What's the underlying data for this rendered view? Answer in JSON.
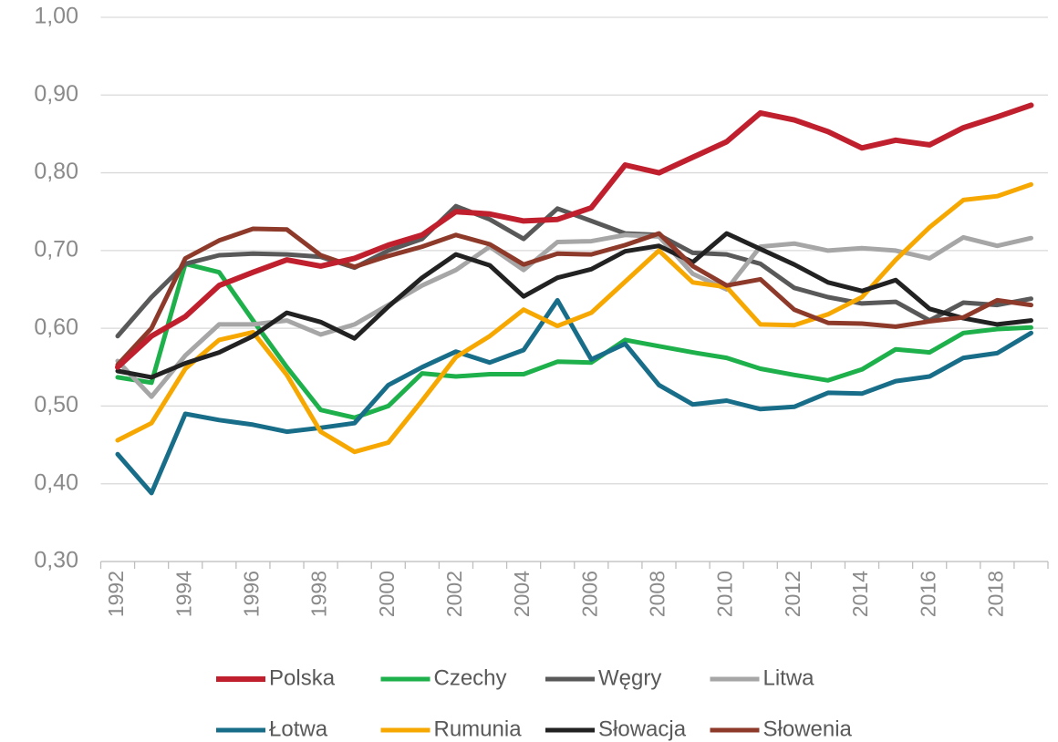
{
  "chart_data": {
    "type": "line",
    "categories": [
      "1992",
      null,
      "1994",
      null,
      "1996",
      null,
      "1998",
      null,
      "2000",
      null,
      "2002",
      null,
      "2004",
      null,
      "2006",
      null,
      "2008",
      null,
      "2010",
      null,
      "2012",
      null,
      "2014",
      null,
      "2016",
      null,
      "2018",
      null
    ],
    "series": [
      {
        "name": "Polska",
        "color": "#c0202e",
        "values": [
          0.55,
          0.59,
          0.615,
          0.655,
          0.672,
          0.688,
          0.68,
          0.69,
          0.707,
          0.72,
          0.75,
          0.747,
          0.738,
          0.74,
          0.755,
          0.81,
          0.8,
          0.82,
          0.84,
          0.877,
          0.868,
          0.853,
          0.832,
          0.842,
          0.836,
          0.858,
          0.872,
          0.887
        ]
      },
      {
        "name": "Czechy",
        "color": "#1db04b",
        "values": [
          0.537,
          0.53,
          0.683,
          0.672,
          0.61,
          0.55,
          0.495,
          0.485,
          0.5,
          0.542,
          0.538,
          0.541,
          0.541,
          0.557,
          0.556,
          0.585,
          0.577,
          0.569,
          0.562,
          0.548,
          0.54,
          0.533,
          0.547,
          0.573,
          0.569,
          0.594,
          0.599,
          0.601
        ]
      },
      {
        "name": "Węgry",
        "color": "#595959",
        "values": [
          0.59,
          0.64,
          0.683,
          0.694,
          0.696,
          0.695,
          0.692,
          0.678,
          0.7,
          0.715,
          0.757,
          0.74,
          0.715,
          0.754,
          0.738,
          0.722,
          0.72,
          0.697,
          0.695,
          0.683,
          0.652,
          0.64,
          0.632,
          0.634,
          0.61,
          0.633,
          0.63,
          0.638
        ]
      },
      {
        "name": "Litwa",
        "color": "#a6a6a6",
        "values": [
          0.558,
          0.512,
          0.565,
          0.605,
          0.605,
          0.61,
          0.592,
          0.605,
          0.63,
          0.655,
          0.675,
          0.705,
          0.675,
          0.711,
          0.712,
          0.72,
          0.718,
          0.67,
          0.65,
          0.705,
          0.709,
          0.7,
          0.703,
          0.7,
          0.69,
          0.717,
          0.706,
          0.716
        ]
      },
      {
        "name": "Łotwa",
        "color": "#186d89",
        "values": [
          0.438,
          0.388,
          0.49,
          0.482,
          0.476,
          0.467,
          0.472,
          0.478,
          0.527,
          0.55,
          0.57,
          0.556,
          0.572,
          0.636,
          0.56,
          0.58,
          0.527,
          0.502,
          0.507,
          0.496,
          0.499,
          0.517,
          0.516,
          0.532,
          0.538,
          0.562,
          0.568,
          0.594
        ]
      },
      {
        "name": "Rumunia",
        "color": "#f6a800",
        "values": [
          0.456,
          0.478,
          0.548,
          0.585,
          0.595,
          0.54,
          0.467,
          0.441,
          0.453,
          0.507,
          0.563,
          0.59,
          0.624,
          0.603,
          0.62,
          0.66,
          0.7,
          0.659,
          0.653,
          0.605,
          0.604,
          0.618,
          0.64,
          0.688,
          0.73,
          0.765,
          0.77,
          0.785
        ]
      },
      {
        "name": "Słowacja",
        "color": "#222222",
        "values": [
          0.545,
          0.537,
          0.555,
          0.569,
          0.59,
          0.62,
          0.608,
          0.587,
          0.628,
          0.665,
          0.695,
          0.681,
          0.641,
          0.665,
          0.676,
          0.699,
          0.706,
          0.685,
          0.722,
          0.702,
          0.682,
          0.659,
          0.648,
          0.662,
          0.625,
          0.613,
          0.605,
          0.61
        ]
      },
      {
        "name": "Słowenia",
        "color": "#8e3a2b",
        "values": [
          0.553,
          0.6,
          0.69,
          0.713,
          0.728,
          0.727,
          0.694,
          0.679,
          0.693,
          0.705,
          0.72,
          0.708,
          0.682,
          0.696,
          0.695,
          0.707,
          0.722,
          0.68,
          0.655,
          0.663,
          0.624,
          0.607,
          0.606,
          0.602,
          0.609,
          0.614,
          0.636,
          0.63
        ]
      }
    ],
    "ylim": [
      0.3,
      1.0
    ],
    "yticks": [
      {
        "value": 0.3,
        "label": "0,30"
      },
      {
        "value": 0.4,
        "label": "0,40"
      },
      {
        "value": 0.5,
        "label": "0,50"
      },
      {
        "value": 0.6,
        "label": "0,60"
      },
      {
        "value": 0.7,
        "label": "0,70"
      },
      {
        "value": 0.8,
        "label": "0,80"
      },
      {
        "value": 0.9,
        "label": "0,90"
      },
      {
        "value": 1.0,
        "label": "1,00"
      }
    ],
    "grid": true,
    "legend": "bottom"
  }
}
